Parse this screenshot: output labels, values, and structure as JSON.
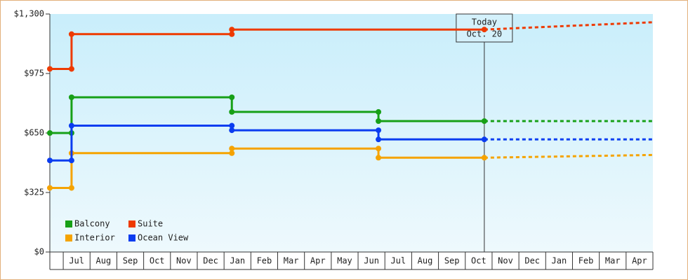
{
  "chart_data": {
    "type": "step-line",
    "categories": [
      null,
      "Jul",
      "Aug",
      "Sep",
      "Oct",
      "Nov",
      "Dec",
      "Jan",
      "Feb",
      "Mar",
      "Apr",
      "May",
      "Jun",
      "Jul",
      "Aug",
      "Sep",
      "Oct",
      "Nov",
      "Dec",
      "Jan",
      "Feb",
      "Mar",
      "Apr"
    ],
    "xlim": [
      -0.5,
      22
    ],
    "ylim": [
      0,
      1300
    ],
    "yticks": [
      {
        "value": 0,
        "label": "$0"
      },
      {
        "value": 325,
        "label": "$325"
      },
      {
        "value": 650,
        "label": "$650"
      },
      {
        "value": 975,
        "label": "$975"
      },
      {
        "value": 1300,
        "label": "$1,300"
      }
    ],
    "annotation": {
      "lines": [
        "Today",
        "Oct. 20"
      ],
      "x": 15.71
    },
    "legend": "lower left",
    "series": [
      {
        "name": "Balcony",
        "color": "#17a017",
        "x": [
          -0.5,
          0.31,
          0.31,
          6.29,
          6.29,
          11.76,
          11.76,
          15.71
        ],
        "values": [
          650,
          650,
          845,
          845,
          765,
          765,
          715,
          715
        ],
        "projection": {
          "x": [
            15.71,
            22
          ],
          "values": [
            715,
            715
          ]
        }
      },
      {
        "name": "Suite",
        "color": "#ee3a00",
        "x": [
          -0.5,
          0.31,
          0.31,
          6.29,
          6.29,
          15.71
        ],
        "values": [
          1000,
          1000,
          1190,
          1190,
          1215,
          1215
        ],
        "projection": {
          "x": [
            15.71,
            22
          ],
          "values": [
            1215,
            1255
          ]
        }
      },
      {
        "name": "Interior",
        "color": "#f5a300",
        "x": [
          -0.5,
          0.31,
          0.31,
          6.29,
          6.29,
          11.76,
          11.76,
          15.71
        ],
        "values": [
          350,
          350,
          540,
          540,
          565,
          565,
          515,
          515
        ],
        "projection": {
          "x": [
            15.71,
            22
          ],
          "values": [
            515,
            530
          ]
        }
      },
      {
        "name": "Ocean View",
        "color": "#0a3cf0",
        "x": [
          -0.5,
          0.31,
          0.31,
          6.29,
          6.29,
          11.76,
          11.76,
          15.71
        ],
        "values": [
          500,
          500,
          690,
          690,
          665,
          665,
          615,
          615
        ],
        "projection": {
          "x": [
            15.71,
            22
          ],
          "values": [
            615,
            615
          ]
        }
      }
    ]
  }
}
